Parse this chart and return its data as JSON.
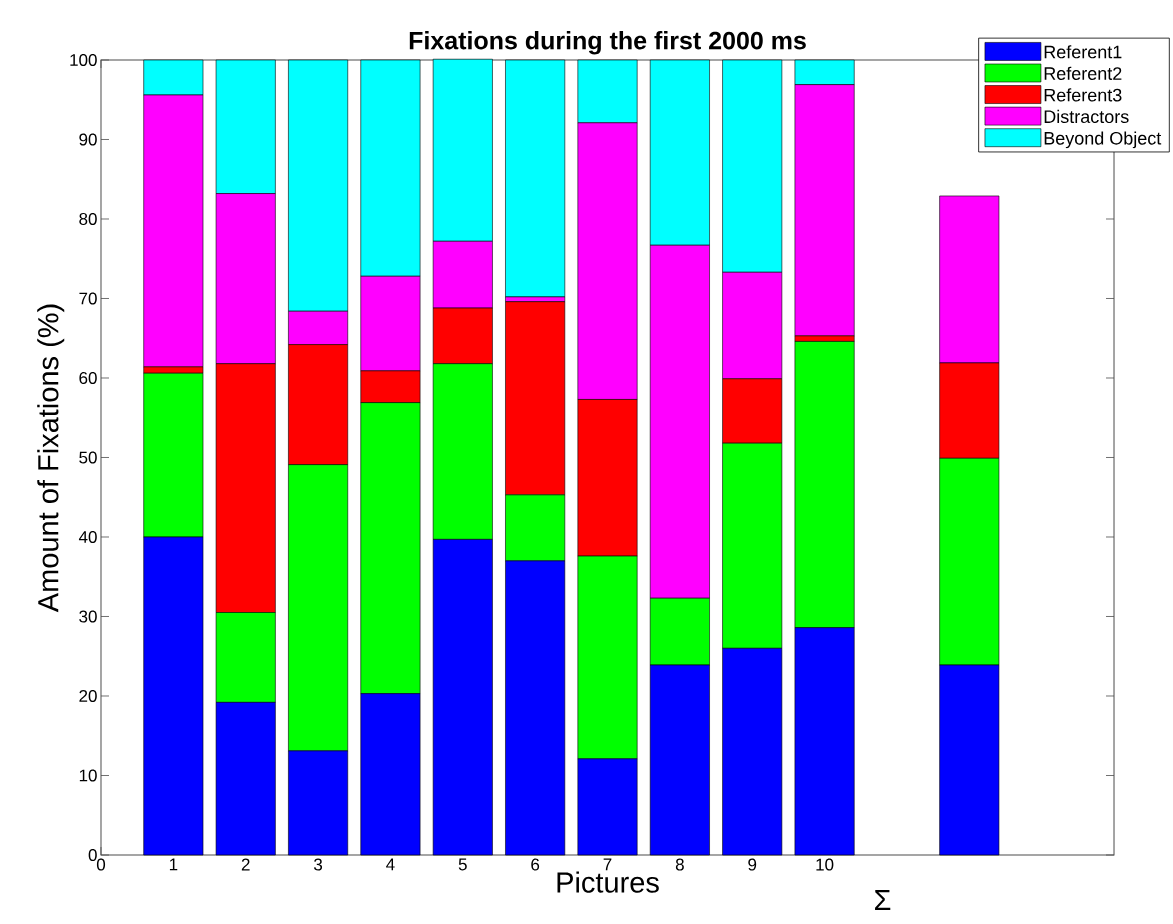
{
  "chart_data": {
    "type": "bar",
    "stacked": true,
    "title": "Fixations during the first 2000 ms",
    "xlabel": "Pictures",
    "ylabel": "Amount of Fixations (%)",
    "annotations": [
      "Σ"
    ],
    "x": [
      1,
      2,
      3,
      4,
      5,
      6,
      7,
      8,
      9,
      10,
      12
    ],
    "xlim": [
      0,
      14
    ],
    "xticks": [
      0,
      1,
      2,
      3,
      4,
      5,
      6,
      7,
      8,
      9,
      10
    ],
    "ylim": [
      0,
      100
    ],
    "yticks": [
      0,
      10,
      20,
      30,
      40,
      50,
      60,
      70,
      80,
      90,
      100
    ],
    "grid": false,
    "legend": "top right",
    "series": [
      {
        "name": "Referent1",
        "color": "#0000ff",
        "values": [
          40.0,
          19.2,
          13.1,
          20.3,
          39.7,
          37.0,
          12.1,
          23.9,
          26.0,
          28.6,
          23.9
        ]
      },
      {
        "name": "Referent2",
        "color": "#00ff00",
        "values": [
          20.6,
          11.3,
          36.0,
          36.6,
          22.1,
          8.3,
          25.5,
          8.4,
          25.8,
          36.0,
          26.0
        ]
      },
      {
        "name": "Referent3",
        "color": "#ff0000",
        "values": [
          0.8,
          31.3,
          15.1,
          4.0,
          7.0,
          24.3,
          19.7,
          0,
          8.1,
          0.7,
          12.0
        ]
      },
      {
        "name": "Distractors",
        "color": "#ff00ff",
        "values": [
          34.2,
          21.4,
          4.2,
          11.9,
          8.4,
          0.6,
          34.8,
          44.4,
          13.4,
          31.6,
          21
        ]
      },
      {
        "name": "Beyond Object",
        "color": "#00ffff",
        "values": [
          4.4,
          16.8,
          31.6,
          27.2,
          22.9,
          29.8,
          7.9,
          23.3,
          26.7,
          3.1,
          null
        ]
      }
    ]
  }
}
